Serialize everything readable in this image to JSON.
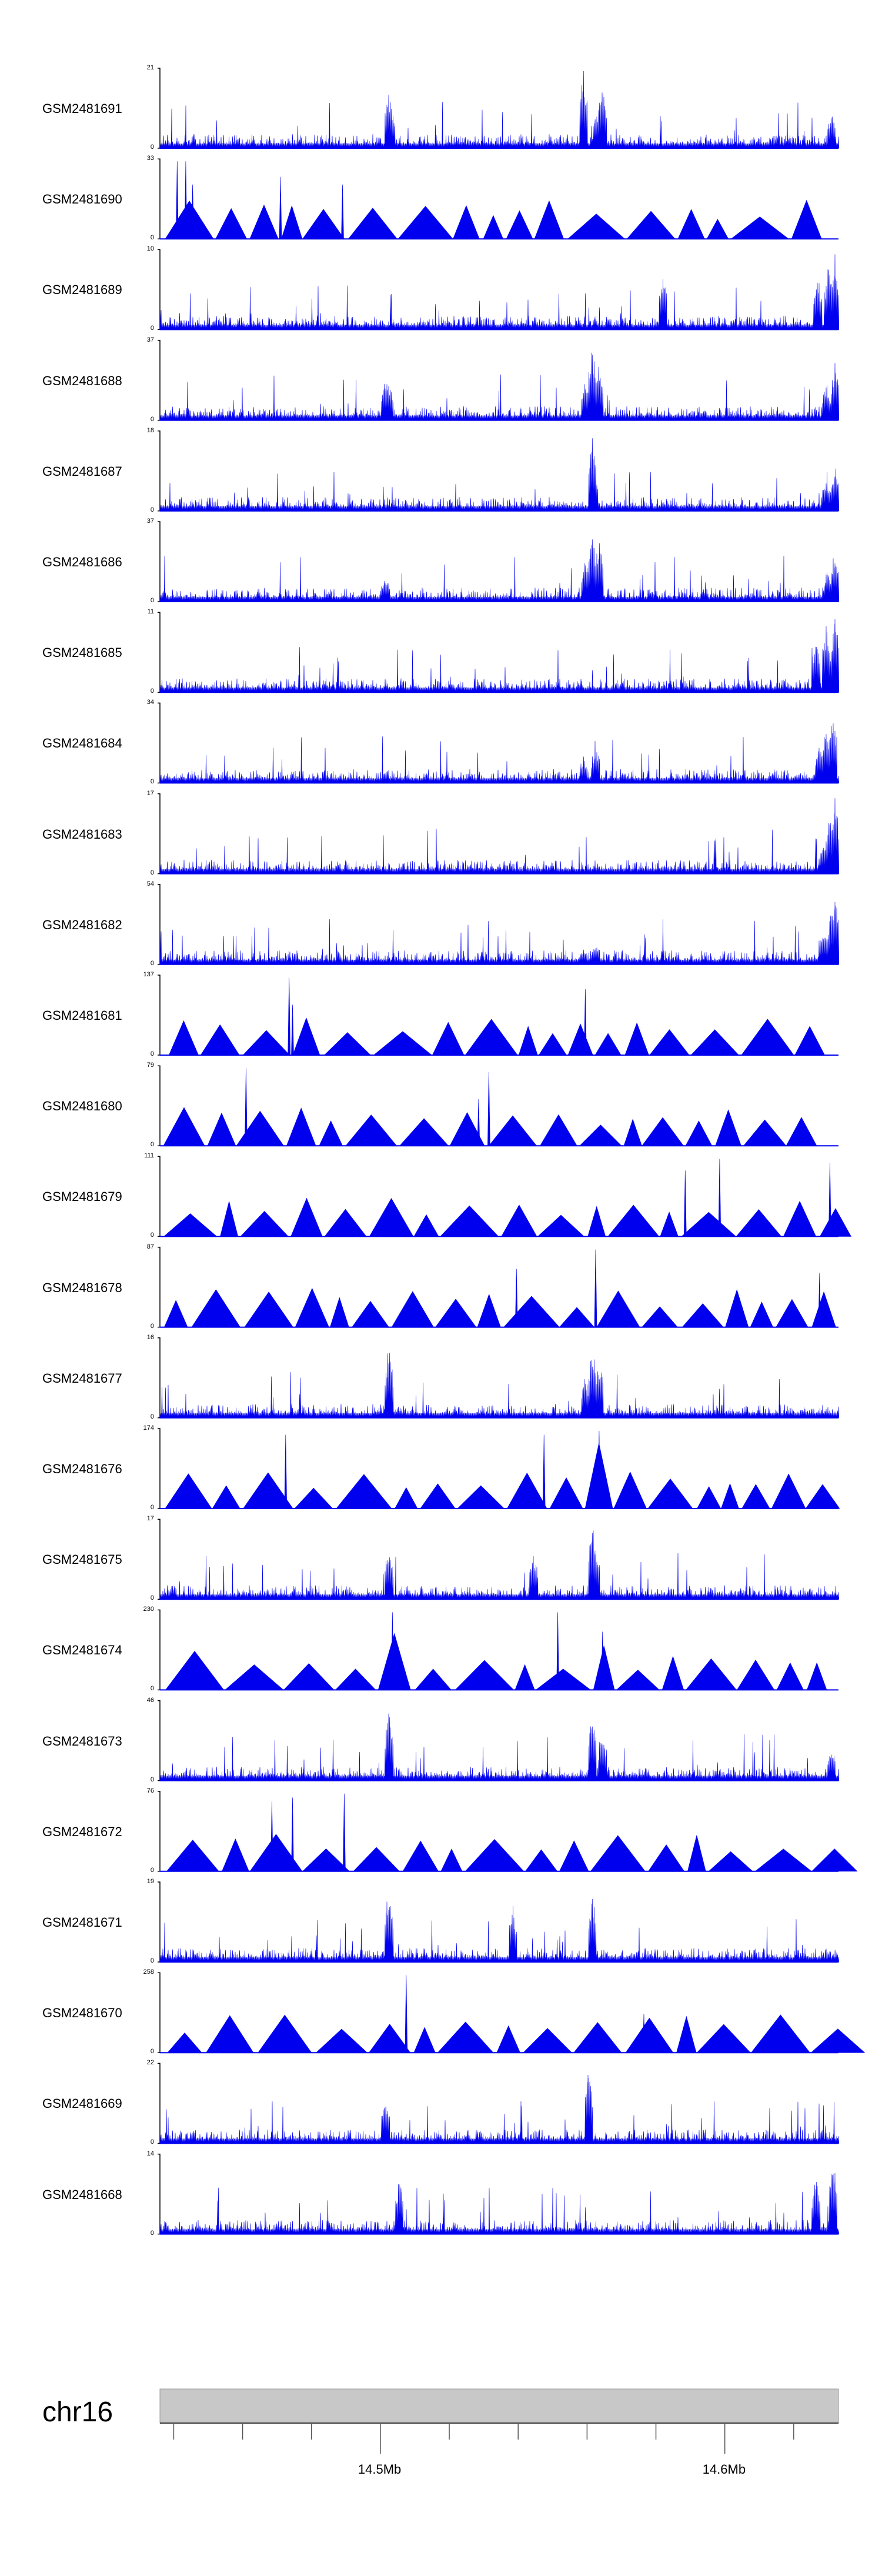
{
  "chart_data": {
    "type": "area",
    "title": "",
    "chromosome": "chr16",
    "x_axis": {
      "unit": "Mb",
      "labeled_ticks": [
        {
          "value": 14.5,
          "label": "14.5Mb"
        },
        {
          "value": 14.6,
          "label": "14.6Mb"
        }
      ],
      "minor_tick_step": 0.02,
      "range": [
        14.436,
        14.633
      ]
    },
    "tracks": [
      {
        "name": "GSM2481691",
        "ymax": 21,
        "ymin": 0,
        "style": "dense",
        "peaks": [
          [
            14.5025,
            0.75
          ],
          [
            14.503,
            0.55
          ],
          [
            14.559,
            1.0
          ],
          [
            14.5645,
            0.85
          ],
          [
            14.563,
            0.5
          ],
          [
            14.631,
            0.45
          ]
        ]
      },
      {
        "name": "GSM2481690",
        "ymax": 33,
        "ymin": 0,
        "style": "sparse",
        "peaks": [
          [
            14.441,
            1.0
          ],
          [
            14.4435,
            1.0
          ],
          [
            14.471,
            0.8
          ],
          [
            14.4455,
            0.7
          ],
          [
            14.489,
            0.7
          ]
        ]
      },
      {
        "name": "GSM2481689",
        "ymax": 10,
        "ymin": 0,
        "style": "dense",
        "peaks": [
          [
            14.632,
            1.0
          ],
          [
            14.63,
            0.85
          ],
          [
            14.627,
            0.7
          ],
          [
            14.582,
            0.75
          ]
        ]
      },
      {
        "name": "GSM2481688",
        "ymax": 37,
        "ymin": 0,
        "style": "dense",
        "peaks": [
          [
            14.5015,
            0.55
          ],
          [
            14.5025,
            0.5
          ],
          [
            14.5615,
            0.95
          ],
          [
            14.5635,
            0.75
          ],
          [
            14.5595,
            0.55
          ],
          [
            14.632,
            0.75
          ],
          [
            14.6295,
            0.5
          ]
        ]
      },
      {
        "name": "GSM2481687",
        "ymax": 18,
        "ymin": 0,
        "style": "dense",
        "peaks": [
          [
            14.5615,
            1.0
          ],
          [
            14.562,
            0.6
          ],
          [
            14.632,
            0.6
          ],
          [
            14.6295,
            0.45
          ]
        ]
      },
      {
        "name": "GSM2481686",
        "ymax": 37,
        "ymin": 0,
        "style": "dense",
        "peaks": [
          [
            14.5015,
            0.35
          ],
          [
            14.5615,
            0.95
          ],
          [
            14.5635,
            0.8
          ],
          [
            14.5595,
            0.55
          ],
          [
            14.632,
            0.7
          ],
          [
            14.63,
            0.45
          ]
        ]
      },
      {
        "name": "GSM2481685",
        "ymax": 11,
        "ymin": 0,
        "style": "dense",
        "peaks": [
          [
            14.632,
            1.0
          ],
          [
            14.6295,
            0.9
          ],
          [
            14.6265,
            0.75
          ]
        ]
      },
      {
        "name": "GSM2481684",
        "ymax": 34,
        "ymin": 0,
        "style": "dense",
        "peaks": [
          [
            14.5625,
            0.5
          ],
          [
            14.559,
            0.35
          ],
          [
            14.6315,
            0.95
          ],
          [
            14.6295,
            0.75
          ],
          [
            14.6275,
            0.5
          ]
        ]
      },
      {
        "name": "GSM2481683",
        "ymax": 17,
        "ymin": 0,
        "style": "dense",
        "peaks": [
          [
            14.632,
            1.0
          ],
          [
            14.6305,
            0.8
          ],
          [
            14.6285,
            0.45
          ]
        ]
      },
      {
        "name": "GSM2481682",
        "ymax": 54,
        "ymin": 0,
        "style": "dense",
        "peaks": [
          [
            14.5625,
            0.3
          ],
          [
            14.559,
            0.2
          ],
          [
            14.632,
            0.9
          ],
          [
            14.631,
            0.75
          ],
          [
            14.6285,
            0.5
          ]
        ]
      },
      {
        "name": "GSM2481681",
        "ymax": 137,
        "ymin": 0,
        "style": "sparse",
        "peaks": [
          [
            14.4735,
            1.0
          ],
          [
            14.5595,
            0.85
          ],
          [
            14.4745,
            0.65
          ]
        ]
      },
      {
        "name": "GSM2481680",
        "ymax": 79,
        "ymin": 0,
        "style": "sparse",
        "peaks": [
          [
            14.461,
            1.0
          ],
          [
            14.5315,
            0.95
          ],
          [
            14.5285,
            0.6
          ]
        ]
      },
      {
        "name": "GSM2481679",
        "ymax": 111,
        "ymin": 0,
        "style": "sparse",
        "peaks": [
          [
            14.5985,
            1.0
          ],
          [
            14.6305,
            0.95
          ],
          [
            14.5885,
            0.85
          ]
        ]
      },
      {
        "name": "GSM2481678",
        "ymax": 87,
        "ymin": 0,
        "style": "sparse",
        "peaks": [
          [
            14.5625,
            1.0
          ],
          [
            14.6275,
            0.7
          ],
          [
            14.5395,
            0.75
          ]
        ]
      },
      {
        "name": "GSM2481677",
        "ymax": 16,
        "ymin": 0,
        "style": "dense",
        "peaks": [
          [
            14.5025,
            1.0
          ],
          [
            14.5615,
            0.95
          ],
          [
            14.5635,
            0.75
          ],
          [
            14.5595,
            0.55
          ]
        ]
      },
      {
        "name": "GSM2481676",
        "ymax": 174,
        "ymin": 0,
        "style": "sparse",
        "peaks": [
          [
            14.5635,
            1.0
          ],
          [
            14.5475,
            0.95
          ],
          [
            14.4725,
            0.95
          ]
        ]
      },
      {
        "name": "GSM2481674",
        "ymax": 230,
        "ymin": 0,
        "style": "sparse",
        "peaks": [
          [
            14.5035,
            1.0
          ],
          [
            14.5515,
            1.0
          ],
          [
            14.5645,
            0.75
          ]
        ]
      },
      {
        "name": "GSM2481675",
        "ymax": 17,
        "ymin": 0,
        "style": "dense",
        "peaks": [
          [
            14.5615,
            1.0
          ],
          [
            14.5625,
            0.75
          ],
          [
            14.5025,
            0.7
          ],
          [
            14.5445,
            0.6
          ]
        ]
      },
      {
        "name": "GSM2481673",
        "ymax": 46,
        "ymin": 0,
        "style": "dense",
        "peaks": [
          [
            14.5025,
            0.95
          ],
          [
            14.5615,
            1.0
          ],
          [
            14.5645,
            0.65
          ],
          [
            14.631,
            0.45
          ]
        ]
      },
      {
        "name": "GSM2481672",
        "ymax": 76,
        "ymin": 0,
        "style": "sparse",
        "peaks": [
          [
            14.4895,
            1.0
          ],
          [
            14.4745,
            0.95
          ],
          [
            14.4685,
            0.9
          ]
        ]
      },
      {
        "name": "GSM2481671",
        "ymax": 19,
        "ymin": 0,
        "style": "dense",
        "peaks": [
          [
            14.5025,
            1.0
          ],
          [
            14.5615,
            0.9
          ],
          [
            14.5385,
            0.75
          ]
        ]
      },
      {
        "name": "GSM2481670",
        "ymax": 258,
        "ymin": 0,
        "style": "sparse",
        "peaks": [
          [
            14.5075,
            1.0
          ],
          [
            14.5765,
            0.5
          ]
        ]
      },
      {
        "name": "GSM2481669",
        "ymax": 22,
        "ymin": 0,
        "style": "dense",
        "peaks": [
          [
            14.5605,
            1.0
          ],
          [
            14.5015,
            0.65
          ]
        ]
      },
      {
        "name": "GSM2481668",
        "ymax": 14,
        "ymin": 0,
        "style": "dense",
        "peaks": [
          [
            14.6315,
            1.0
          ],
          [
            14.6265,
            0.75
          ],
          [
            14.5055,
            0.75
          ]
        ]
      }
    ]
  },
  "colors": {
    "signal": "#0000ee",
    "axis": "#000000",
    "ideogram_fill": "#c8c8c8",
    "ideogram_stroke": "#999999"
  }
}
